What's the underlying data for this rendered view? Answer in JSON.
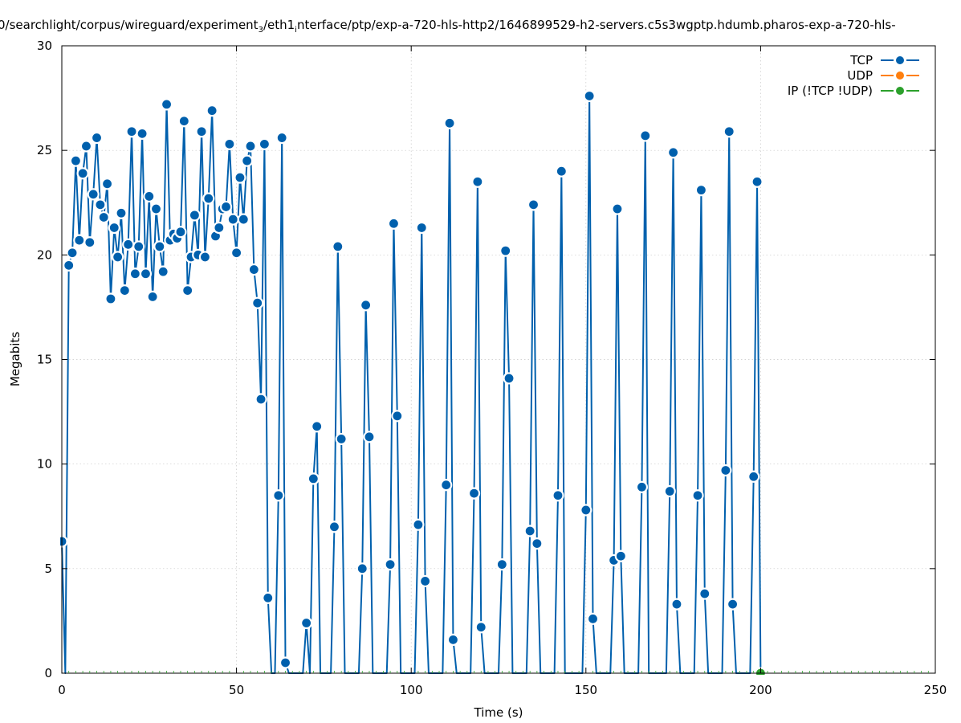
{
  "chart_data": {
    "type": "line",
    "title_parts": {
      "pre": "0/searchlight/corpus/wireguard/experiment",
      "sub1": "3",
      "mid": "/eth1",
      "sub2": "i",
      "post": "nterface/ptp/exp-a-720-hls-http2/1646899529-h2-servers.c5s3wgptp.hdumb.pharos-exp-a-720-hls-"
    },
    "xlabel": "Time (s)",
    "ylabel": "Megabits",
    "xlim": [
      0,
      250
    ],
    "ylim": [
      0,
      30
    ],
    "x_ticks": [
      "0",
      "50",
      "100",
      "150",
      "200",
      "250"
    ],
    "y_ticks": [
      "0",
      "5",
      "10",
      "15",
      "20",
      "25",
      "30"
    ],
    "grid": true,
    "legend_position": "top-right",
    "series": [
      {
        "name": "TCP",
        "color": "#0060ad",
        "points": [
          [
            0,
            6.3
          ],
          [
            1,
            0
          ],
          [
            2,
            19.5
          ],
          [
            3,
            20.1
          ],
          [
            4,
            24.5
          ],
          [
            5,
            20.7
          ],
          [
            6,
            23.9
          ],
          [
            7,
            25.2
          ],
          [
            8,
            20.6
          ],
          [
            9,
            22.9
          ],
          [
            10,
            25.6
          ],
          [
            11,
            22.4
          ],
          [
            12,
            21.8
          ],
          [
            13,
            23.4
          ],
          [
            14,
            17.9
          ],
          [
            15,
            21.3
          ],
          [
            16,
            19.9
          ],
          [
            17,
            22
          ],
          [
            18,
            18.3
          ],
          [
            19,
            20.5
          ],
          [
            20,
            25.9
          ],
          [
            21,
            19.1
          ],
          [
            22,
            20.4
          ],
          [
            23,
            25.8
          ],
          [
            24,
            19.1
          ],
          [
            25,
            22.8
          ],
          [
            26,
            18
          ],
          [
            27,
            22.2
          ],
          [
            28,
            20.4
          ],
          [
            29,
            19.2
          ],
          [
            30,
            27.2
          ],
          [
            31,
            20.7
          ],
          [
            32,
            21
          ],
          [
            33,
            20.8
          ],
          [
            34,
            21.1
          ],
          [
            35,
            26.4
          ],
          [
            36,
            18.3
          ],
          [
            37,
            19.9
          ],
          [
            38,
            21.9
          ],
          [
            39,
            20
          ],
          [
            40,
            25.9
          ],
          [
            41,
            19.9
          ],
          [
            42,
            22.7
          ],
          [
            43,
            26.9
          ],
          [
            44,
            20.9
          ],
          [
            45,
            21.3
          ],
          [
            46,
            22.2
          ],
          [
            47,
            22.3
          ],
          [
            48,
            25.3
          ],
          [
            49,
            21.7
          ],
          [
            50,
            20.1
          ],
          [
            51,
            23.7
          ],
          [
            52,
            21.7
          ],
          [
            53,
            24.5
          ],
          [
            54,
            25.2
          ],
          [
            55,
            19.3
          ],
          [
            56,
            17.7
          ],
          [
            57,
            13.1
          ],
          [
            58,
            25.3
          ],
          [
            59,
            3.6
          ],
          [
            60,
            0
          ],
          [
            61,
            0
          ],
          [
            62,
            8.5
          ],
          [
            63,
            25.6
          ],
          [
            64,
            0.5
          ],
          [
            65,
            0
          ],
          [
            66,
            0
          ],
          [
            67,
            0
          ],
          [
            68,
            0
          ],
          [
            69,
            0
          ],
          [
            70,
            2.4
          ],
          [
            71,
            0
          ],
          [
            72,
            9.3
          ],
          [
            73,
            11.8
          ],
          [
            74,
            0
          ],
          [
            75,
            0
          ],
          [
            76,
            0
          ],
          [
            77,
            0
          ],
          [
            78,
            7
          ],
          [
            79,
            20.4
          ],
          [
            80,
            11.2
          ],
          [
            81,
            0
          ],
          [
            82,
            0
          ],
          [
            83,
            0
          ],
          [
            84,
            0
          ],
          [
            85,
            0
          ],
          [
            86,
            5
          ],
          [
            87,
            17.6
          ],
          [
            88,
            11.3
          ],
          [
            89,
            0
          ],
          [
            90,
            0
          ],
          [
            91,
            0
          ],
          [
            92,
            0
          ],
          [
            93,
            0
          ],
          [
            94,
            5.2
          ],
          [
            95,
            21.5
          ],
          [
            96,
            12.3
          ],
          [
            97,
            0
          ],
          [
            98,
            0
          ],
          [
            99,
            0
          ],
          [
            100,
            0
          ],
          [
            101,
            0
          ],
          [
            102,
            7.1
          ],
          [
            103,
            21.3
          ],
          [
            104,
            4.4
          ],
          [
            105,
            0
          ],
          [
            106,
            0
          ],
          [
            107,
            0
          ],
          [
            108,
            0
          ],
          [
            109,
            0
          ],
          [
            110,
            9
          ],
          [
            111,
            26.3
          ],
          [
            112,
            1.6
          ],
          [
            113,
            0
          ],
          [
            114,
            0
          ],
          [
            115,
            0
          ],
          [
            116,
            0
          ],
          [
            117,
            0
          ],
          [
            118,
            8.6
          ],
          [
            119,
            23.5
          ],
          [
            120,
            2.2
          ],
          [
            121,
            0
          ],
          [
            122,
            0
          ],
          [
            123,
            0
          ],
          [
            124,
            0
          ],
          [
            125,
            0
          ],
          [
            126,
            5.2
          ],
          [
            127,
            20.2
          ],
          [
            128,
            14.1
          ],
          [
            129,
            0
          ],
          [
            130,
            0
          ],
          [
            131,
            0
          ],
          [
            132,
            0
          ],
          [
            133,
            0
          ],
          [
            134,
            6.8
          ],
          [
            135,
            22.4
          ],
          [
            136,
            6.2
          ],
          [
            137,
            0
          ],
          [
            138,
            0
          ],
          [
            139,
            0
          ],
          [
            140,
            0
          ],
          [
            141,
            0
          ],
          [
            142,
            8.5
          ],
          [
            143,
            24
          ],
          [
            144,
            0
          ],
          [
            145,
            0
          ],
          [
            146,
            0
          ],
          [
            147,
            0
          ],
          [
            148,
            0
          ],
          [
            149,
            0
          ],
          [
            150,
            7.8
          ],
          [
            151,
            27.6
          ],
          [
            152,
            2.6
          ],
          [
            153,
            0
          ],
          [
            154,
            0
          ],
          [
            155,
            0
          ],
          [
            156,
            0
          ],
          [
            157,
            0
          ],
          [
            158,
            5.4
          ],
          [
            159,
            22.2
          ],
          [
            160,
            5.6
          ],
          [
            161,
            0
          ],
          [
            162,
            0
          ],
          [
            163,
            0
          ],
          [
            164,
            0
          ],
          [
            165,
            0
          ],
          [
            166,
            8.9
          ],
          [
            167,
            25.7
          ],
          [
            168,
            0
          ],
          [
            169,
            0
          ],
          [
            170,
            0
          ],
          [
            171,
            0
          ],
          [
            172,
            0
          ],
          [
            173,
            0
          ],
          [
            174,
            8.7
          ],
          [
            175,
            24.9
          ],
          [
            176,
            3.3
          ],
          [
            177,
            0
          ],
          [
            178,
            0
          ],
          [
            179,
            0
          ],
          [
            180,
            0
          ],
          [
            181,
            0
          ],
          [
            182,
            8.5
          ],
          [
            183,
            23.1
          ],
          [
            184,
            3.8
          ],
          [
            185,
            0
          ],
          [
            186,
            0
          ],
          [
            187,
            0
          ],
          [
            188,
            0
          ],
          [
            189,
            0
          ],
          [
            190,
            9.7
          ],
          [
            191,
            25.9
          ],
          [
            192,
            3.3
          ],
          [
            193,
            0
          ],
          [
            194,
            0
          ],
          [
            195,
            0
          ],
          [
            196,
            0
          ],
          [
            197,
            0
          ],
          [
            198,
            9.4
          ],
          [
            199,
            23.5
          ],
          [
            200,
            0
          ]
        ]
      },
      {
        "name": "UDP",
        "color": "#ff7f0e",
        "points": []
      },
      {
        "name": "IP (!TCP  !UDP)",
        "color": "#2ca02c",
        "points": [
          [
            200,
            0
          ]
        ]
      }
    ]
  }
}
